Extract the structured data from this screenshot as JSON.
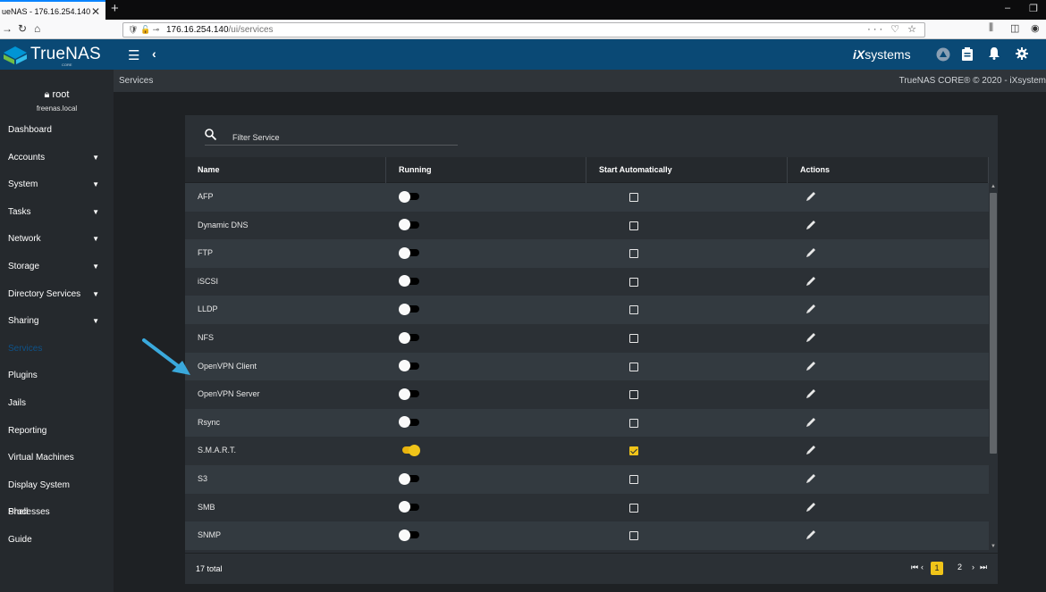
{
  "browser": {
    "tab_title": "ueNAS - 176.16.254.140",
    "tab_close": "✕",
    "new_tab": "+",
    "url_host": "176.16.254.140",
    "url_path": "/ui/services",
    "url_extra": "··· ♡ ☆",
    "win_minimize": "–",
    "win_restore": "❐"
  },
  "header": {
    "logo_text": "TrueNAS",
    "logo_sub": "CORE",
    "brand_right": "systems",
    "brand_prefix": "iX"
  },
  "subheader": {
    "breadcrumb": "Services",
    "copyright": "TrueNAS CORE® © 2020 - iXsystem"
  },
  "user": {
    "name": "root",
    "host": "freenas.local"
  },
  "sidebar": {
    "items": [
      {
        "label": "Dashboard",
        "expandable": false
      },
      {
        "label": "Accounts",
        "expandable": true
      },
      {
        "label": "System",
        "expandable": true
      },
      {
        "label": "Tasks",
        "expandable": true
      },
      {
        "label": "Network",
        "expandable": true
      },
      {
        "label": "Storage",
        "expandable": true
      },
      {
        "label": "Directory Services",
        "expandable": true
      },
      {
        "label": "Sharing",
        "expandable": true
      },
      {
        "label": "Services",
        "expandable": false,
        "active": true
      },
      {
        "label": "Plugins",
        "expandable": false
      },
      {
        "label": "Jails",
        "expandable": false
      },
      {
        "label": "Reporting",
        "expandable": false
      },
      {
        "label": "Virtual Machines",
        "expandable": false
      },
      {
        "label": "Display System Processes",
        "expandable": false
      },
      {
        "label": "Shell",
        "expandable": false
      },
      {
        "label": "Guide",
        "expandable": false
      }
    ]
  },
  "filter": {
    "placeholder": "Filter Service"
  },
  "table": {
    "columns": [
      "Name",
      "Running",
      "Start Automatically",
      "Actions"
    ],
    "rows": [
      {
        "name": "AFP",
        "running": false,
        "auto": false
      },
      {
        "name": "Dynamic DNS",
        "running": false,
        "auto": false
      },
      {
        "name": "FTP",
        "running": false,
        "auto": false
      },
      {
        "name": "iSCSI",
        "running": false,
        "auto": false
      },
      {
        "name": "LLDP",
        "running": false,
        "auto": false
      },
      {
        "name": "NFS",
        "running": false,
        "auto": false
      },
      {
        "name": "OpenVPN Client",
        "running": false,
        "auto": false
      },
      {
        "name": "OpenVPN Server",
        "running": false,
        "auto": false
      },
      {
        "name": "Rsync",
        "running": false,
        "auto": false
      },
      {
        "name": "S.M.A.R.T.",
        "running": true,
        "auto": true
      },
      {
        "name": "S3",
        "running": false,
        "auto": false
      },
      {
        "name": "SMB",
        "running": false,
        "auto": false
      },
      {
        "name": "SNMP",
        "running": false,
        "auto": false
      }
    ],
    "total": "17 total",
    "pages": [
      "1",
      "2"
    ],
    "current_page": "1"
  },
  "colors": {
    "accent": "#f0c419",
    "header_bg": "#0a4975",
    "annotation_arrow": "#3aa9dc"
  }
}
